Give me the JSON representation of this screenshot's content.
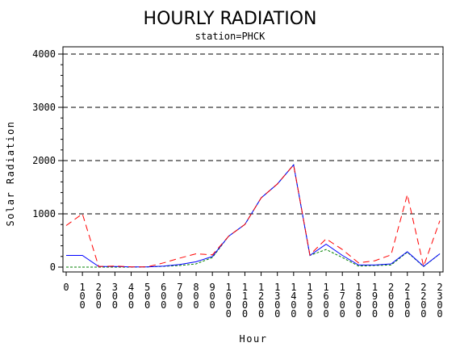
{
  "chart_data": {
    "type": "line",
    "title": "HOURLY RADIATION",
    "subtitle": "station=PHCK",
    "xlabel": "Hour",
    "ylabel": "Solar Radiation",
    "ylim": [
      0,
      4000
    ],
    "yticks": [
      "0",
      "1000",
      "2000",
      "3000",
      "4000"
    ],
    "grid_y": [
      1000,
      2000,
      3000,
      4000
    ],
    "x": [
      "0",
      "100",
      "200",
      "300",
      "400",
      "500",
      "600",
      "700",
      "800",
      "900",
      "1000",
      "1100",
      "1200",
      "1300",
      "1400",
      "1500",
      "1600",
      "1700",
      "1800",
      "1900",
      "2000",
      "2100",
      "2200",
      "2300"
    ],
    "series": [
      {
        "color": "#0000ff",
        "dash": "solid",
        "values": [
          220,
          220,
          10,
          10,
          5,
          5,
          20,
          50,
          100,
          200,
          580,
          800,
          1300,
          1560,
          1920,
          220,
          430,
          220,
          40,
          40,
          60,
          290,
          15,
          250
        ]
      },
      {
        "color": "#ff0000",
        "dash": "dashed",
        "values": [
          780,
          1000,
          10,
          20,
          5,
          5,
          80,
          170,
          250,
          230,
          580,
          800,
          1300,
          1560,
          1920,
          230,
          530,
          330,
          80,
          120,
          230,
          1360,
          15,
          870
        ]
      },
      {
        "color": "#008000",
        "dash": "dotted",
        "values": [
          0,
          0,
          0,
          0,
          0,
          5,
          15,
          30,
          60,
          180,
          580,
          800,
          1300,
          1560,
          1920,
          220,
          330,
          180,
          20,
          30,
          40,
          280,
          10,
          250
        ]
      }
    ]
  }
}
